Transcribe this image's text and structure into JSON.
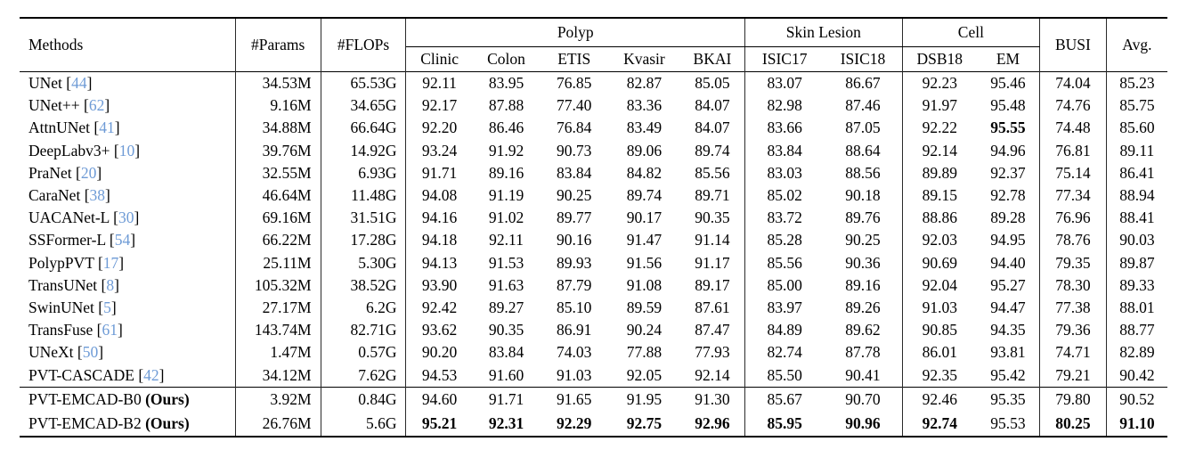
{
  "colors": {
    "citation_blue": "#6e9bd6",
    "text": "#000000",
    "rule": "#000000"
  },
  "table": {
    "bold_marker": "*",
    "header": {
      "methods": "Methods",
      "params": "#Params",
      "flops": "#FLOPs",
      "groups": [
        {
          "label": "Polyp",
          "cols": [
            "Clinic",
            "Colon",
            "ETIS",
            "Kvasir",
            "BKAI"
          ]
        },
        {
          "label": "Skin Lesion",
          "cols": [
            "ISIC17",
            "ISIC18"
          ]
        },
        {
          "label": "Cell",
          "cols": [
            "DSB18",
            "EM"
          ]
        }
      ],
      "busi": "BUSI",
      "avg": "Avg."
    },
    "rows": [
      {
        "method": "UNet",
        "ref": "44",
        "params": "34.53M",
        "flops": "65.53G",
        "cells": [
          "92.11",
          "83.95",
          "76.85",
          "82.87",
          "85.05",
          "83.07",
          "86.67",
          "92.23",
          "95.46",
          "74.04",
          "85.23"
        ]
      },
      {
        "method": "UNet++",
        "ref": "62",
        "params": "9.16M",
        "flops": "34.65G",
        "cells": [
          "92.17",
          "87.88",
          "77.40",
          "83.36",
          "84.07",
          "82.98",
          "87.46",
          "91.97",
          "95.48",
          "74.76",
          "85.75"
        ]
      },
      {
        "method": "AttnUNet",
        "ref": "41",
        "params": "34.88M",
        "flops": "66.64G",
        "cells": [
          "92.20",
          "86.46",
          "76.84",
          "83.49",
          "84.07",
          "83.66",
          "87.05",
          "92.22",
          "*95.55",
          "74.48",
          "85.60"
        ]
      },
      {
        "method": "DeepLabv3+",
        "ref": "10",
        "params": "39.76M",
        "flops": "14.92G",
        "cells": [
          "93.24",
          "91.92",
          "90.73",
          "89.06",
          "89.74",
          "83.84",
          "88.64",
          "92.14",
          "94.96",
          "76.81",
          "89.11"
        ]
      },
      {
        "method": "PraNet",
        "ref": "20",
        "params": "32.55M",
        "flops": "6.93G",
        "cells": [
          "91.71",
          "89.16",
          "83.84",
          "84.82",
          "85.56",
          "83.03",
          "88.56",
          "89.89",
          "92.37",
          "75.14",
          "86.41"
        ]
      },
      {
        "method": "CaraNet",
        "ref": "38",
        "params": "46.64M",
        "flops": "11.48G",
        "cells": [
          "94.08",
          "91.19",
          "90.25",
          "89.74",
          "89.71",
          "85.02",
          "90.18",
          "89.15",
          "92.78",
          "77.34",
          "88.94"
        ]
      },
      {
        "method": "UACANet-L",
        "ref": "30",
        "params": "69.16M",
        "flops": "31.51G",
        "cells": [
          "94.16",
          "91.02",
          "89.77",
          "90.17",
          "90.35",
          "83.72",
          "89.76",
          "88.86",
          "89.28",
          "76.96",
          "88.41"
        ]
      },
      {
        "method": "SSFormer-L",
        "ref": "54",
        "params": "66.22M",
        "flops": "17.28G",
        "cells": [
          "94.18",
          "92.11",
          "90.16",
          "91.47",
          "91.14",
          "85.28",
          "90.25",
          "92.03",
          "94.95",
          "78.76",
          "90.03"
        ]
      },
      {
        "method": "PolypPVT",
        "ref": "17",
        "params": "25.11M",
        "flops": "5.30G",
        "cells": [
          "94.13",
          "91.53",
          "89.93",
          "91.56",
          "91.17",
          "85.56",
          "90.36",
          "90.69",
          "94.40",
          "79.35",
          "89.87"
        ]
      },
      {
        "method": "TransUNet",
        "ref": "8",
        "params": "105.32M",
        "flops": "38.52G",
        "cells": [
          "93.90",
          "91.63",
          "87.79",
          "91.08",
          "89.17",
          "85.00",
          "89.16",
          "92.04",
          "95.27",
          "78.30",
          "89.33"
        ]
      },
      {
        "method": "SwinUNet",
        "ref": "5",
        "params": "27.17M",
        "flops": "6.2G",
        "cells": [
          "92.42",
          "89.27",
          "85.10",
          "89.59",
          "87.61",
          "83.97",
          "89.26",
          "91.03",
          "94.47",
          "77.38",
          "88.01"
        ]
      },
      {
        "method": "TransFuse",
        "ref": "61",
        "params": "143.74M",
        "flops": "82.71G",
        "cells": [
          "93.62",
          "90.35",
          "86.91",
          "90.24",
          "87.47",
          "84.89",
          "89.62",
          "90.85",
          "94.35",
          "79.36",
          "88.77"
        ]
      },
      {
        "method": "UNeXt",
        "ref": "50",
        "params": "1.47M",
        "flops": "0.57G",
        "cells": [
          "90.20",
          "83.84",
          "74.03",
          "77.88",
          "77.93",
          "82.74",
          "87.78",
          "86.01",
          "93.81",
          "74.71",
          "82.89"
        ]
      },
      {
        "method": "PVT-CASCADE",
        "ref": "42",
        "params": "34.12M",
        "flops": "7.62G",
        "cells": [
          "94.53",
          "91.60",
          "91.03",
          "92.05",
          "92.14",
          "85.50",
          "90.41",
          "92.35",
          "95.42",
          "79.21",
          "90.42"
        ]
      }
    ],
    "ours_rows": [
      {
        "method": "PVT-EMCAD-B0",
        "ours_label": "Ours",
        "params": "3.92M",
        "flops": "0.84G",
        "cells": [
          "94.60",
          "91.71",
          "91.65",
          "91.95",
          "91.30",
          "85.67",
          "90.70",
          "92.46",
          "95.35",
          "79.80",
          "90.52"
        ]
      },
      {
        "method": "PVT-EMCAD-B2",
        "ours_label": "Ours",
        "params": "26.76M",
        "flops": "5.6G",
        "cells": [
          "*95.21",
          "*92.31",
          "*92.29",
          "*92.75",
          "*92.96",
          "*85.95",
          "*90.96",
          "*92.74",
          "95.53",
          "*80.25",
          "*91.10"
        ]
      }
    ]
  }
}
